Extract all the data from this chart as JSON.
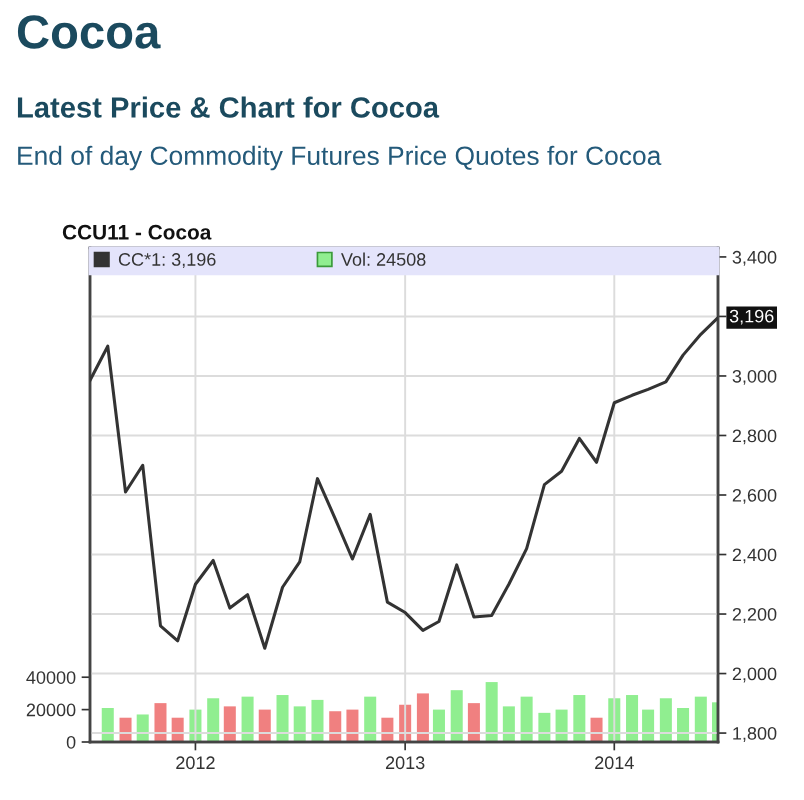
{
  "chart_data": {
    "type": "line",
    "title": "Cocoa",
    "subtitle": "Latest Price & Chart for Cocoa",
    "annotations": [
      "End of day Commodity Futures Price Quotes for Cocoa",
      "CCU11 - Cocoa",
      {
        "text": "3,196",
        "x": "2014-07",
        "y": 3196
      }
    ],
    "xlim": [
      "2011-07",
      "2014-07"
    ],
    "xticks": [
      "2012",
      "2013",
      "2014"
    ],
    "ylim": [
      1770,
      3430
    ],
    "yticks": [
      {
        "value": 1800,
        "label": "1,800"
      },
      {
        "value": 2000,
        "label": "2,000"
      },
      {
        "value": 2200,
        "label": "2,200"
      },
      {
        "value": 2400,
        "label": "2,400"
      },
      {
        "value": 2600,
        "label": "2,600"
      },
      {
        "value": 2800,
        "label": "2,800"
      },
      {
        "value": 3000,
        "label": "3,000"
      },
      {
        "value": 3200,
        "label": null
      },
      {
        "value": 3400,
        "label": "3,400"
      }
    ],
    "y2lim": [
      0,
      305000
    ],
    "y2ticks": [
      0,
      20000,
      40000
    ],
    "grid": true,
    "legend": "top",
    "series": [
      {
        "name": "Vol: 24508",
        "type": "bar",
        "axis": "y2",
        "color": "#90ee90",
        "x": [
          "2011-08",
          "2011-09",
          "2011-10",
          "2011-11",
          "2011-12",
          "2012-01",
          "2012-02",
          "2012-03",
          "2012-04",
          "2012-05",
          "2012-06",
          "2012-07",
          "2012-08",
          "2012-09",
          "2012-10",
          "2012-11",
          "2012-12",
          "2013-01",
          "2013-02",
          "2013-03",
          "2013-04",
          "2013-05",
          "2013-06",
          "2013-07",
          "2013-08",
          "2013-09",
          "2013-10",
          "2013-11",
          "2013-12",
          "2014-01",
          "2014-02",
          "2014-03",
          "2014-04",
          "2014-05",
          "2014-06",
          "2014-07"
        ],
        "values": [
          21000,
          15000,
          17000,
          24000,
          15000,
          20000,
          27000,
          22000,
          28000,
          20000,
          29000,
          22000,
          26000,
          19000,
          20000,
          28000,
          15000,
          23000,
          30000,
          20000,
          32000,
          24000,
          37000,
          22000,
          28000,
          18000,
          20000,
          29000,
          15000,
          27000,
          29000,
          20000,
          27000,
          21000,
          28000,
          24508
        ],
        "colors": [
          "#90ee90",
          "#f08080",
          "#90ee90",
          "#f08080",
          "#f08080",
          "#90ee90",
          "#90ee90",
          "#f08080",
          "#90ee90",
          "#f08080",
          "#90ee90",
          "#90ee90",
          "#90ee90",
          "#f08080",
          "#f08080",
          "#90ee90",
          "#f08080",
          "#f08080",
          "#f08080",
          "#90ee90",
          "#90ee90",
          "#f08080",
          "#90ee90",
          "#90ee90",
          "#90ee90",
          "#90ee90",
          "#90ee90",
          "#90ee90",
          "#f08080",
          "#90ee90",
          "#90ee90",
          "#90ee90",
          "#90ee90",
          "#90ee90",
          "#90ee90",
          "#90ee90"
        ]
      },
      {
        "name": "CC*1: 3,196",
        "type": "line",
        "color": "#333333",
        "x": [
          "2011-07",
          "2011-08",
          "2011-09",
          "2011-10",
          "2011-11",
          "2011-12",
          "2012-01",
          "2012-02",
          "2012-03",
          "2012-04",
          "2012-05",
          "2012-06",
          "2012-07",
          "2012-08",
          "2012-09",
          "2012-10",
          "2012-11",
          "2012-12",
          "2013-01",
          "2013-02",
          "2013-03",
          "2013-04",
          "2013-05",
          "2013-06",
          "2013-07",
          "2013-08",
          "2013-09",
          "2013-10",
          "2013-11",
          "2013-12",
          "2014-01",
          "2014-02",
          "2014-03",
          "2014-04",
          "2014-05",
          "2014-06",
          "2014-07"
        ],
        "values": [
          2985,
          3100,
          2610,
          2700,
          2160,
          2110,
          2300,
          2380,
          2220,
          2265,
          2085,
          2290,
          2375,
          2655,
          2520,
          2385,
          2535,
          2240,
          2205,
          2145,
          2175,
          2365,
          2190,
          2195,
          2300,
          2420,
          2635,
          2680,
          2790,
          2710,
          2910,
          2935,
          2955,
          2980,
          3070,
          3140,
          3196
        ]
      }
    ]
  }
}
